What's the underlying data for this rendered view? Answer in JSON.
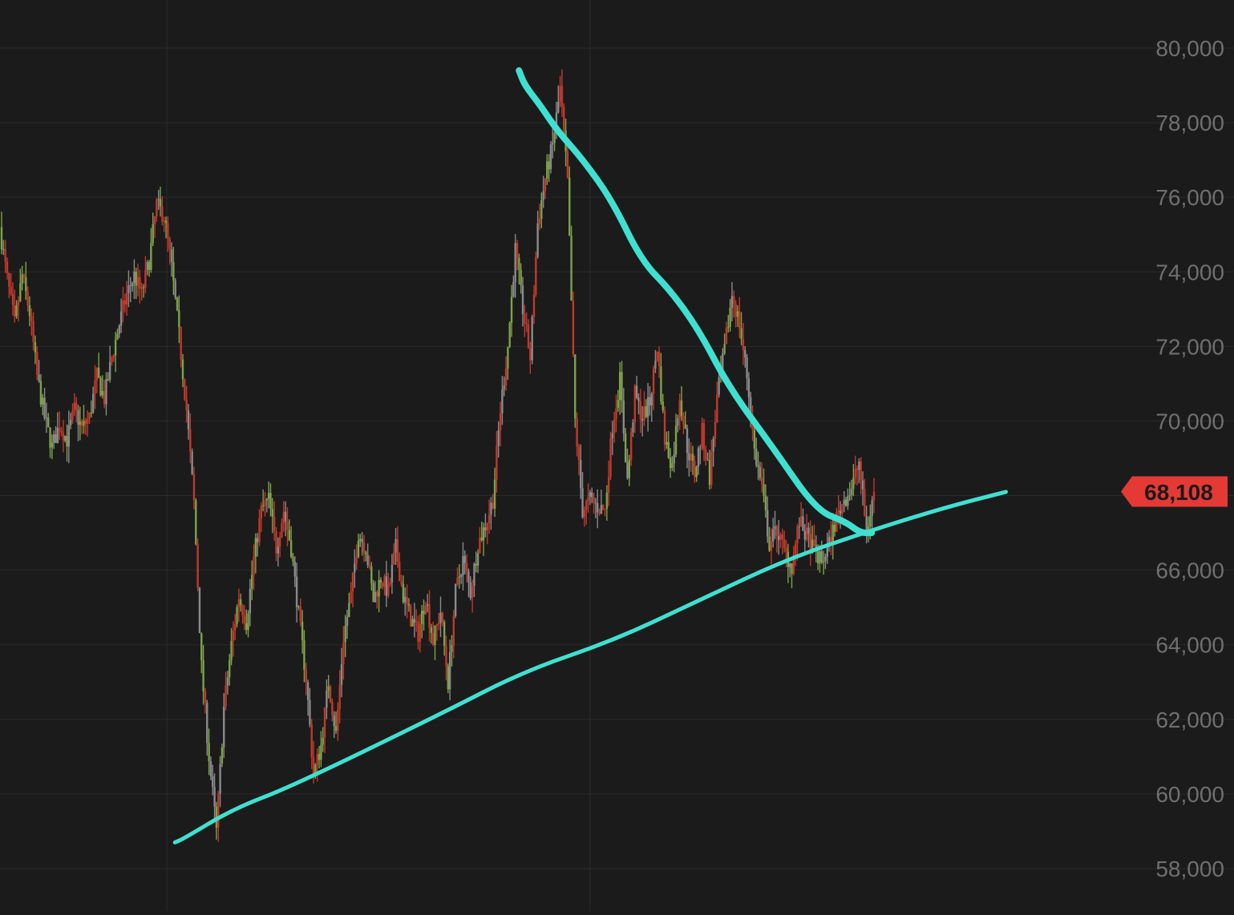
{
  "chart_data": {
    "type": "candlestick",
    "ylim": [
      57500,
      80500
    ],
    "y_ticks": [
      {
        "value": 80000,
        "label": "80,000"
      },
      {
        "value": 78000,
        "label": "78,000"
      },
      {
        "value": 76000,
        "label": "76,000"
      },
      {
        "value": 74000,
        "label": "74,000"
      },
      {
        "value": 72000,
        "label": "72,000"
      },
      {
        "value": 70000,
        "label": "70,000"
      },
      {
        "value": 66000,
        "label": "66,000"
      },
      {
        "value": 64000,
        "label": "64,000"
      },
      {
        "value": 62000,
        "label": "62,000"
      },
      {
        "value": 60000,
        "label": "60,000"
      },
      {
        "value": 58000,
        "label": "58,000"
      }
    ],
    "current_price": {
      "value": 68108,
      "label": "68,108"
    },
    "grid": true,
    "price_path": [
      75200,
      73800,
      72600,
      73900,
      72900,
      71200,
      70100,
      69300,
      69900,
      69500,
      70300,
      69800,
      70100,
      71200,
      70600,
      71700,
      72600,
      73400,
      73900,
      73400,
      74300,
      75800,
      75500,
      74100,
      72300,
      70300,
      67800,
      63400,
      61000,
      59000,
      62300,
      64000,
      65300,
      64600,
      66300,
      67600,
      67900,
      66600,
      67600,
      66600,
      64800,
      63100,
      60500,
      61300,
      63000,
      61600,
      64200,
      65300,
      67000,
      66600,
      65200,
      65800,
      65400,
      66600,
      65300,
      64700,
      64300,
      65300,
      64100,
      64900,
      63000,
      65400,
      66300,
      65400,
      66700,
      67200,
      67900,
      70300,
      72000,
      74600,
      73000,
      71700,
      75300,
      76500,
      77400,
      78900,
      76400,
      70000,
      67600,
      67900,
      67700,
      67600,
      69900,
      71100,
      68400,
      70700,
      70100,
      70500,
      72000,
      69500,
      68800,
      70700,
      69300,
      68600,
      69700,
      68500,
      70600,
      71900,
      73400,
      72600,
      71200,
      69200,
      68200,
      66700,
      67100,
      66500,
      66100,
      67300,
      66900,
      66500,
      66200,
      66700,
      67400,
      67900,
      68200,
      68900,
      67000,
      68108
    ],
    "trendlines": [
      {
        "points": [
          [
            0.1558,
            58700
          ],
          [
            0.1636,
            58800
          ],
          [
            0.2078,
            59600
          ],
          [
            0.2597,
            60200
          ],
          [
            0.3896,
            62100
          ],
          [
            0.4675,
            63300
          ],
          [
            0.5455,
            64100
          ],
          [
            0.6234,
            65200
          ],
          [
            0.7013,
            66300
          ],
          [
            0.7792,
            67100
          ],
          [
            0.8442,
            67700
          ],
          [
            0.8961,
            68100
          ]
        ]
      },
      {
        "points": [
          [
            0.4623,
            79400
          ],
          [
            0.4675,
            79000
          ],
          [
            0.4805,
            78500
          ],
          [
            0.4961,
            77800
          ],
          [
            0.5195,
            77000
          ],
          [
            0.5455,
            75900
          ],
          [
            0.5714,
            74300
          ],
          [
            0.5974,
            73500
          ],
          [
            0.6234,
            72400
          ],
          [
            0.6494,
            70900
          ],
          [
            0.6883,
            69300
          ],
          [
            0.7273,
            67600
          ],
          [
            0.7532,
            67300
          ],
          [
            0.7662,
            67000
          ],
          [
            0.7766,
            67000
          ]
        ]
      }
    ],
    "colors": {
      "background": "#1b1b1b",
      "grid": "#2b2b2b",
      "up": "#7ea14a",
      "down": "#c0392b",
      "neutral": "#8a8a8a",
      "trendline": "#40e0d0",
      "price_tag": "#e53935"
    }
  }
}
